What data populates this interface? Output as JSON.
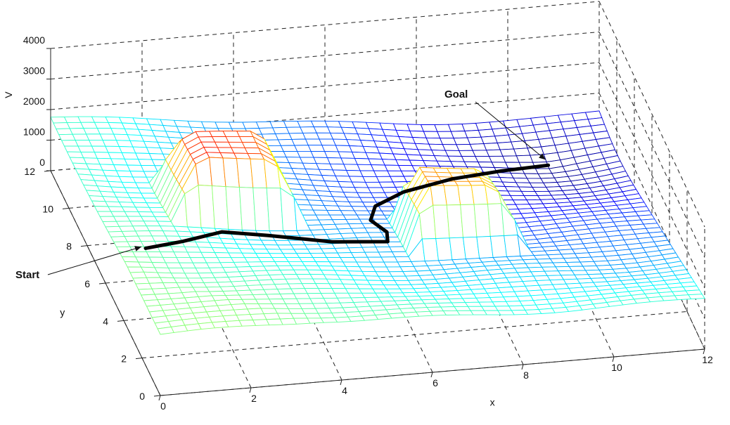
{
  "chart_data": {
    "type": "surface",
    "title": "",
    "xlabel": "x",
    "ylabel": "y",
    "zlabel": "V",
    "xlim": [
      0,
      12
    ],
    "ylim": [
      0,
      12
    ],
    "zlim": [
      0,
      4000
    ],
    "x_ticks": [
      "0",
      "2",
      "4",
      "6",
      "8",
      "10",
      "12"
    ],
    "y_ticks": [
      "0",
      "2",
      "4",
      "6",
      "8",
      "10",
      "12"
    ],
    "z_ticks": [
      "0",
      "1000",
      "2000",
      "3000",
      "4000"
    ],
    "grid": true,
    "colormap": "jet",
    "mesh_resolution": 40,
    "surface": {
      "description_values": {
        "base_potential_at_start": 2000,
        "base_potential_at_goal": 0
      },
      "goal": [
        10.5,
        10.0
      ],
      "start": [
        0.6,
        4.6
      ],
      "obstacles": [
        {
          "center": [
            3.0,
            7.4
          ],
          "half_width": 0.8,
          "height": 4000
        },
        {
          "center": [
            7.6,
            5.4
          ],
          "half_width": 0.7,
          "height": 4000
        }
      ]
    },
    "path": {
      "x": [
        0.6,
        1.5,
        2.5,
        3.5,
        4.8,
        6.0,
        6.1,
        5.9,
        6.2,
        7.0,
        8.2,
        9.4,
        10.5
      ],
      "y": [
        4.6,
        5.0,
        5.7,
        5.6,
        5.1,
        5.0,
        5.6,
        6.4,
        7.4,
        8.3,
        9.0,
        9.6,
        10.0
      ]
    },
    "annotations": [
      {
        "text": "Start",
        "target": [
          0.6,
          4.6
        ]
      },
      {
        "text": "Goal",
        "target": [
          10.5,
          10.0
        ]
      }
    ]
  }
}
